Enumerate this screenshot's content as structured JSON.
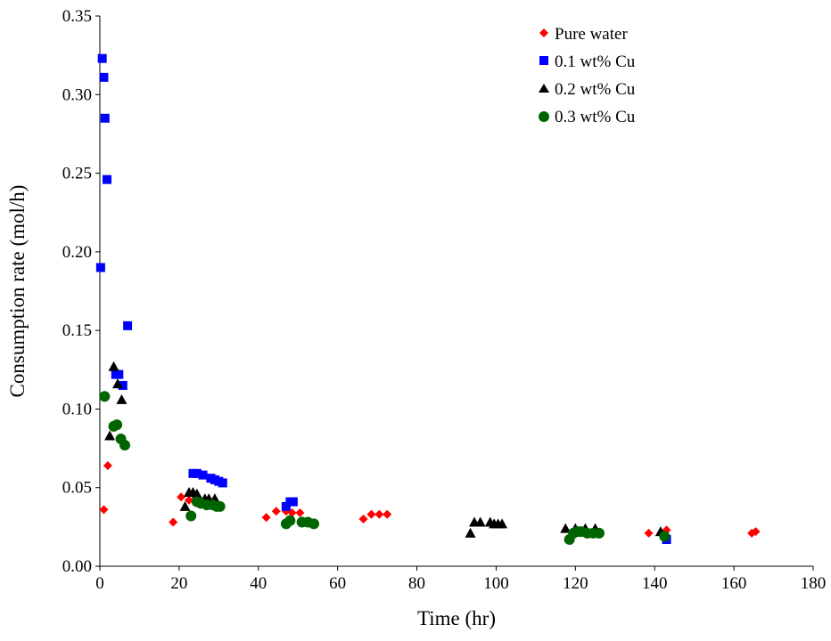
{
  "chart_data": {
    "type": "scatter",
    "title": "",
    "xlabel": "Time (hr)",
    "ylabel": "Consumption rate (mol/h)",
    "xlim": [
      0,
      180
    ],
    "ylim": [
      0,
      0.35
    ],
    "x_ticks": [
      "0",
      "20",
      "40",
      "60",
      "80",
      "100",
      "120",
      "140",
      "160",
      "180"
    ],
    "y_ticks": [
      "0.00",
      "0.05",
      "0.10",
      "0.15",
      "0.20",
      "0.25",
      "0.30",
      "0.35"
    ],
    "grid": false,
    "legend_position": "top-right",
    "series": [
      {
        "name": "Pure water",
        "marker": "diamond",
        "color": "#ff0000",
        "points": [
          [
            1.0,
            0.036
          ],
          [
            2.0,
            0.064
          ],
          [
            18.5,
            0.028
          ],
          [
            20.5,
            0.044
          ],
          [
            22.5,
            0.042
          ],
          [
            42.0,
            0.031
          ],
          [
            44.5,
            0.035
          ],
          [
            47.0,
            0.035
          ],
          [
            48.5,
            0.034
          ],
          [
            50.5,
            0.034
          ],
          [
            66.5,
            0.03
          ],
          [
            68.5,
            0.033
          ],
          [
            70.5,
            0.033
          ],
          [
            72.5,
            0.033
          ],
          [
            138.5,
            0.021
          ],
          [
            143.0,
            0.023
          ],
          [
            164.5,
            0.021
          ],
          [
            165.5,
            0.022
          ]
        ]
      },
      {
        "name": "0.1 wt% Cu",
        "marker": "square",
        "color": "#0000ff",
        "points": [
          [
            0.2,
            0.19
          ],
          [
            0.6,
            0.323
          ],
          [
            1.0,
            0.311
          ],
          [
            1.3,
            0.285
          ],
          [
            1.8,
            0.246
          ],
          [
            4.0,
            0.122
          ],
          [
            4.8,
            0.122
          ],
          [
            5.8,
            0.115
          ],
          [
            7.0,
            0.153
          ],
          [
            23.5,
            0.059
          ],
          [
            24.5,
            0.059
          ],
          [
            26.0,
            0.058
          ],
          [
            28.0,
            0.056
          ],
          [
            29.0,
            0.055
          ],
          [
            30.0,
            0.054
          ],
          [
            31.0,
            0.053
          ],
          [
            47.0,
            0.038
          ],
          [
            48.0,
            0.041
          ],
          [
            48.8,
            0.041
          ],
          [
            143.0,
            0.017
          ]
        ]
      },
      {
        "name": "0.2 wt% Cu",
        "marker": "triangle",
        "color": "#000000",
        "points": [
          [
            2.5,
            0.083
          ],
          [
            3.5,
            0.127
          ],
          [
            4.5,
            0.116
          ],
          [
            5.5,
            0.106
          ],
          [
            21.5,
            0.038
          ],
          [
            22.5,
            0.047
          ],
          [
            23.5,
            0.047
          ],
          [
            24.5,
            0.046
          ],
          [
            26.5,
            0.043
          ],
          [
            27.5,
            0.043
          ],
          [
            29.0,
            0.043
          ],
          [
            93.5,
            0.021
          ],
          [
            94.5,
            0.028
          ],
          [
            96.0,
            0.028
          ],
          [
            98.5,
            0.028
          ],
          [
            99.5,
            0.027
          ],
          [
            100.5,
            0.027
          ],
          [
            101.5,
            0.027
          ],
          [
            117.5,
            0.024
          ],
          [
            120.0,
            0.024
          ],
          [
            122.5,
            0.024
          ],
          [
            125.0,
            0.024
          ],
          [
            141.5,
            0.022
          ]
        ]
      },
      {
        "name": "0.3 wt% Cu",
        "marker": "circle",
        "color": "#006400",
        "points": [
          [
            1.2,
            0.108
          ],
          [
            3.5,
            0.089
          ],
          [
            4.3,
            0.09
          ],
          [
            5.3,
            0.081
          ],
          [
            6.3,
            0.077
          ],
          [
            23.0,
            0.032
          ],
          [
            24.5,
            0.041
          ],
          [
            25.5,
            0.04
          ],
          [
            27.0,
            0.039
          ],
          [
            28.5,
            0.039
          ],
          [
            29.5,
            0.038
          ],
          [
            30.3,
            0.038
          ],
          [
            47.0,
            0.027
          ],
          [
            48.0,
            0.029
          ],
          [
            51.0,
            0.028
          ],
          [
            52.5,
            0.028
          ],
          [
            54.0,
            0.027
          ],
          [
            118.5,
            0.017
          ],
          [
            119.5,
            0.021
          ],
          [
            120.5,
            0.022
          ],
          [
            121.5,
            0.022
          ],
          [
            123.0,
            0.021
          ],
          [
            124.5,
            0.021
          ],
          [
            126.0,
            0.021
          ],
          [
            142.5,
            0.019
          ]
        ]
      }
    ]
  }
}
